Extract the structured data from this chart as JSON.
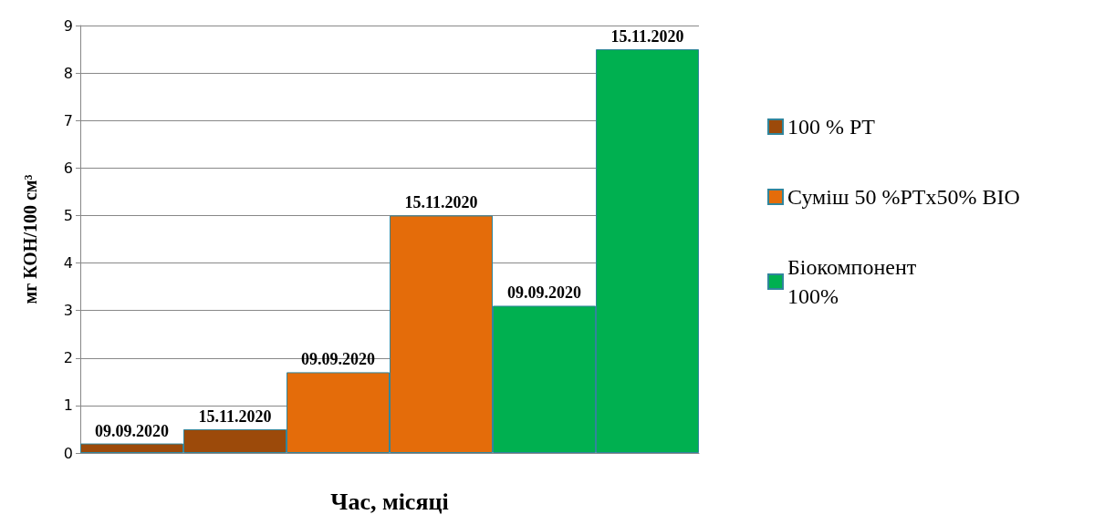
{
  "chart_data": {
    "type": "bar",
    "xlabel": "Час, місяці",
    "ylabel": "мг КОН/100 см³",
    "categories": [
      null,
      null,
      null,
      null,
      null,
      null
    ],
    "series": [
      {
        "name": "100 % PT",
        "color": "#9c4a0a",
        "values": [
          0.2,
          0.5,
          null,
          null,
          null,
          null
        ],
        "value_labels": [
          "09.09.2020",
          "15.11.2020",
          null,
          null,
          null,
          null
        ]
      },
      {
        "name": "Суміш 50 %PTx50% BIO",
        "color": "#e46c0a",
        "values": [
          null,
          null,
          1.7,
          5.0,
          null,
          null
        ],
        "value_labels": [
          null,
          null,
          "09.09.2020",
          "15.11.2020",
          null,
          null
        ]
      },
      {
        "name": "Біокомпонент 100%",
        "color": "#00b050",
        "values": [
          null,
          null,
          null,
          null,
          3.1,
          8.5
        ],
        "value_labels": [
          null,
          null,
          null,
          null,
          "09.09.2020",
          "15.11.2020"
        ]
      }
    ],
    "ylim": [
      0,
      9
    ],
    "yticks": [
      0,
      1,
      2,
      3,
      4,
      5,
      6,
      7,
      8,
      9
    ],
    "grid": "y",
    "legend": "right"
  }
}
